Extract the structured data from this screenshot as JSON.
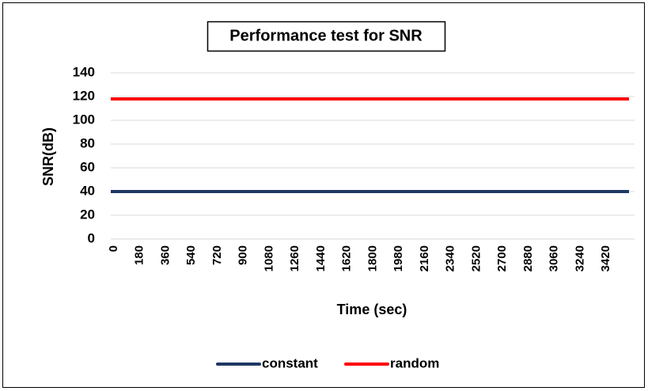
{
  "chart_data": {
    "type": "line",
    "title": "Performance test for SNR",
    "x_label": "Time (sec)",
    "y_label": "SNR(dB)",
    "x": [
      0,
      3600
    ],
    "series": [
      {
        "name": "constant",
        "color": "#1f3864",
        "values": [
          40,
          40
        ]
      },
      {
        "name": "random",
        "color": "#ff0000",
        "values": [
          118,
          118
        ]
      }
    ],
    "xlim": [
      0,
      3600
    ],
    "xticks": [
      0,
      180,
      360,
      540,
      720,
      900,
      1080,
      1260,
      1440,
      1620,
      1800,
      1980,
      2160,
      2340,
      2520,
      2700,
      2880,
      3060,
      3240,
      3420
    ],
    "ylim": [
      0,
      140
    ],
    "yticks": [
      0,
      20,
      40,
      60,
      80,
      100,
      120,
      140
    ],
    "grid": true,
    "legend": "bottom"
  }
}
